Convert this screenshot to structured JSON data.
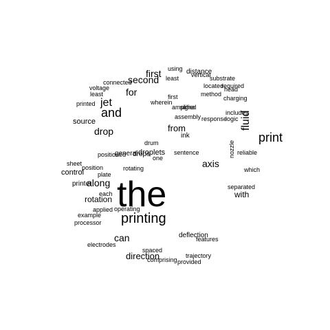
{
  "wordcloud": {
    "text_color": "#000000",
    "background_color": "#ffffff",
    "words": [
      "the",
      "printing",
      "and",
      "print",
      "first",
      "jet",
      "fluid",
      "second",
      "for",
      "source",
      "drop",
      "can",
      "direction",
      "control",
      "printer",
      "along",
      "axis",
      "rotation",
      "with",
      "from",
      "distance",
      "applied",
      "positioned",
      "droplets",
      "general",
      "drops",
      "ink",
      "deflection",
      "features",
      "example",
      "electrodes",
      "drum",
      "head",
      "method",
      "each",
      "plate",
      "rotating",
      "separated",
      "charging",
      "includes",
      "signal",
      "nozzle",
      "printed",
      "position",
      "vertical",
      "first",
      "wherein",
      "voltage",
      "least",
      "connected",
      "substrate",
      "amplifier",
      "located",
      "sentence",
      "required",
      "processor",
      "sheet",
      "which",
      "response",
      "one",
      "assembly",
      "logic",
      "using",
      "least",
      "reliable",
      "provided",
      "comprising",
      "trajectory",
      "spaced",
      "operating"
    ]
  }
}
